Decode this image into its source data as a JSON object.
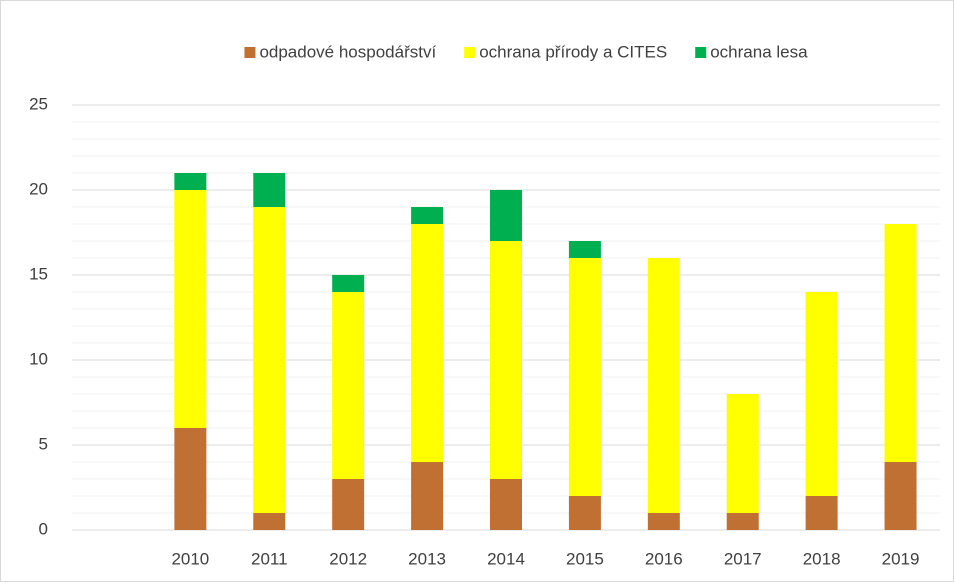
{
  "chart_data": {
    "type": "stacked_bar",
    "categories": [
      null,
      "2010",
      "2011",
      "2012",
      "2013",
      "2014",
      "2015",
      "2016",
      "2017",
      "2018",
      "2019"
    ],
    "series": [
      {
        "name": "odpadové hospodářství",
        "color": "#c07032",
        "values": [
          null,
          6,
          1,
          3,
          4,
          3,
          2,
          1,
          1,
          2,
          4
        ]
      },
      {
        "name": "ochrana přírody a CITES",
        "color": "#ffff00",
        "values": [
          null,
          14,
          18,
          11,
          14,
          14,
          14,
          15,
          7,
          12,
          14
        ]
      },
      {
        "name": "ochrana lesa",
        "color": "#00b050",
        "values": [
          null,
          1,
          2,
          1,
          1,
          3,
          1,
          0,
          0,
          0,
          0
        ]
      }
    ],
    "ylim": [
      0,
      25
    ],
    "yticks": [
      0,
      5,
      10,
      15,
      20,
      25
    ],
    "grid": true,
    "minor_grid": 1,
    "legend": "top"
  }
}
